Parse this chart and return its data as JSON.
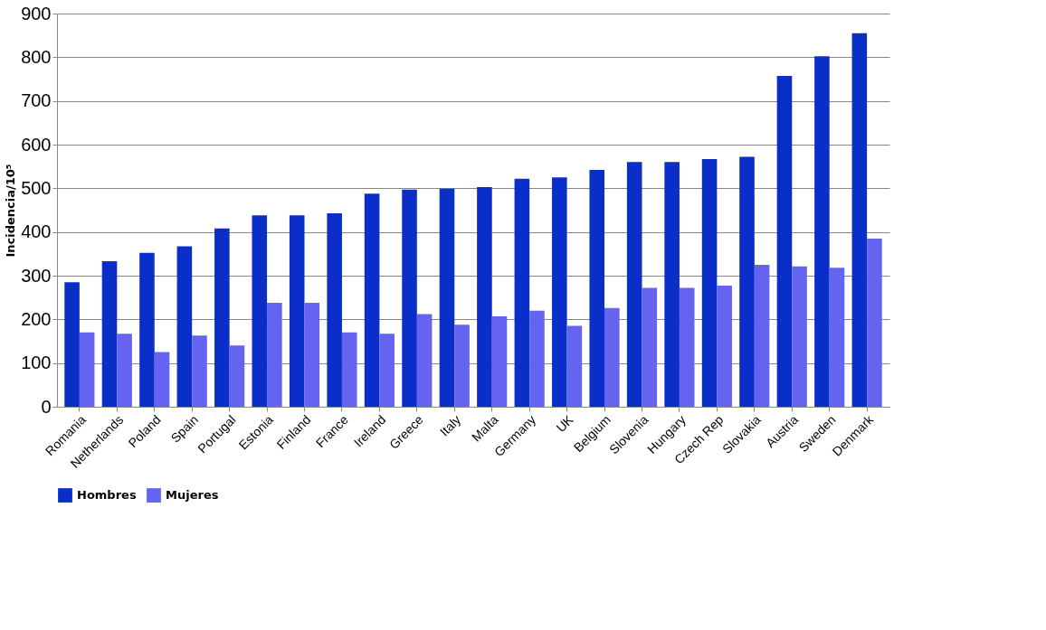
{
  "chart_data": {
    "type": "bar",
    "ylabel": "Incidencia/10⁵",
    "categories": [
      "Romania",
      "Netherlands",
      "Poland",
      "Spain",
      "Portugal",
      "Estonia",
      "Finland",
      "France",
      "Ireland",
      "Greece",
      "Italy",
      "Malta",
      "Germany",
      "UK",
      "Belgium",
      "Slovenia",
      "Hungary",
      "Czech Rep",
      "Slovakia",
      "Austria",
      "Sweden",
      "Denmark"
    ],
    "series": [
      {
        "name": "Hombres",
        "color": "#0a2fc8",
        "values": [
          285,
          333,
          352,
          367,
          408,
          438,
          438,
          443,
          488,
          497,
          499,
          503,
          522,
          525,
          542,
          560,
          560,
          567,
          572,
          757,
          802,
          855
        ]
      },
      {
        "name": "Mujeres",
        "color": "#6464f0",
        "values": [
          170,
          167,
          125,
          163,
          140,
          238,
          238,
          170,
          167,
          212,
          188,
          207,
          220,
          185,
          226,
          272,
          272,
          277,
          325,
          321,
          318,
          385
        ]
      }
    ],
    "ylim": [
      0,
      900
    ],
    "yticks": [
      0,
      100,
      200,
      300,
      400,
      500,
      600,
      700,
      800,
      900
    ],
    "grid": "y",
    "legend": "bottom"
  }
}
